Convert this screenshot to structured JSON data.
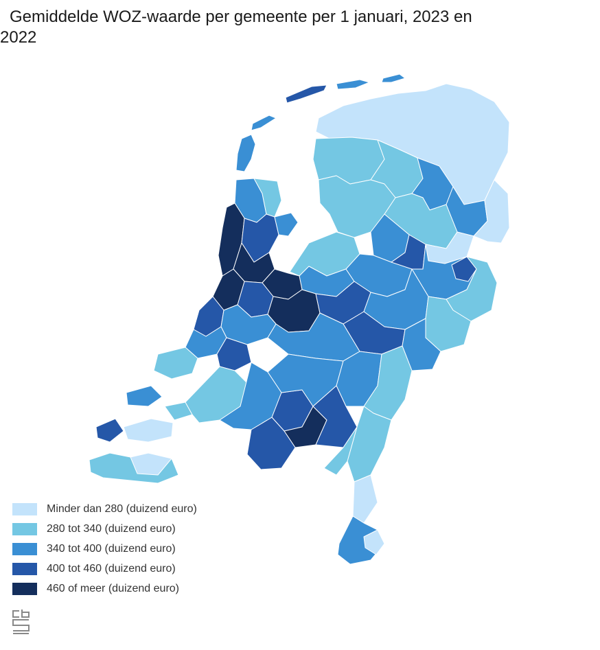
{
  "title": "Gemiddelde WOZ-waarde per gemeente per 1 januari, 2023 en 2022",
  "colors": {
    "class_1": "#c3e3fb",
    "class_2": "#74c7e3",
    "class_3": "#3a8fd4",
    "class_4": "#2557a8",
    "class_5": "#142e5c",
    "border": "#ffffff"
  },
  "legend": [
    {
      "label": "Minder dan 280 (duizend euro)",
      "color": "#c3e3fb"
    },
    {
      "label": "280 tot 340 (duizend euro)",
      "color": "#74c7e3"
    },
    {
      "label": "340 tot 400 (duizend euro)",
      "color": "#3a8fd4"
    },
    {
      "label": "400 tot 460 (duizend euro)",
      "color": "#2557a8"
    },
    {
      "label": "460 of meer (duizend euro)",
      "color": "#142e5c"
    }
  ],
  "logo": {
    "icon": "cbs-logo-icon",
    "text": "cbs"
  }
}
